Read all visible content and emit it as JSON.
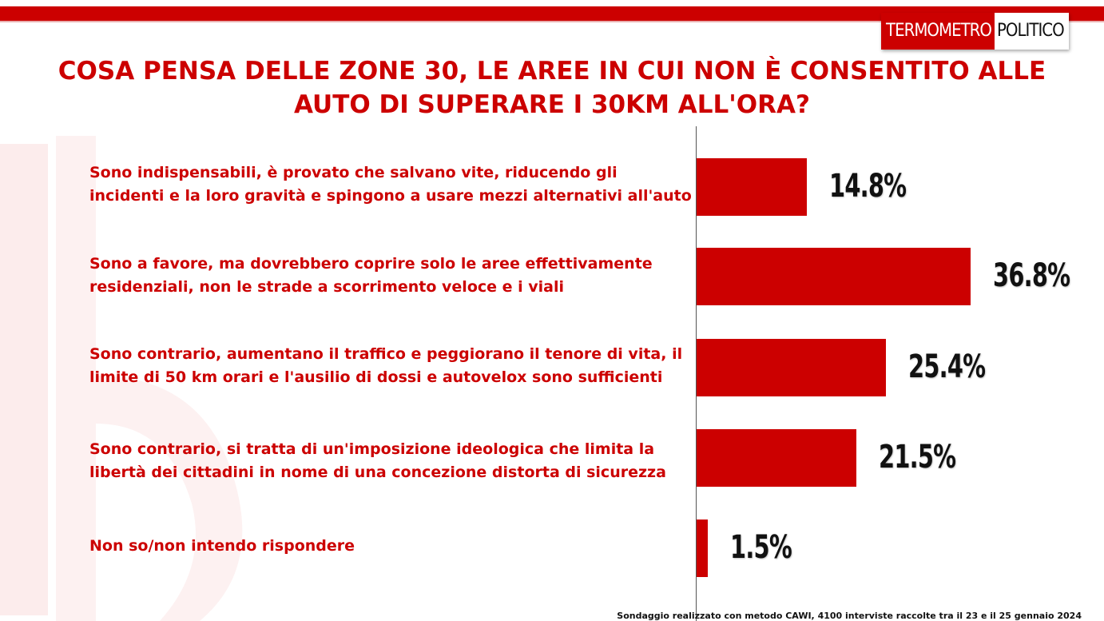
{
  "brand": {
    "part_a": "TERMOMETRO",
    "part_b": "POLITICO",
    "accent": "#cc0000"
  },
  "chart_data": {
    "type": "bar",
    "orientation": "horizontal",
    "title": "COSA PENSA DELLE ZONE 30, LE AREE IN CUI NON È CONSENTITO ALLE AUTO DI SUPERARE I 30KM ALL'ORA?",
    "categories": [
      "Sono indispensabili, è provato che salvano vite, riducendo gli incidenti e la loro gravità  e spingono a usare mezzi alternativi all'auto",
      "Sono a favore, ma dovrebbero coprire solo le aree effettivamente residenziali, non le strade a scorrimento veloce e i viali",
      "Sono contrario, aumentano il traffico e peggiorano il tenore di vita, il limite di 50 km orari e l'ausilio di dossi e autovelox sono sufficienti",
      "Sono contrario, si tratta di un'imposizione ideologica che limita la libertà  dei cittadini in nome di una concezione distorta di sicurezza",
      "Non so/non intendo rispondere"
    ],
    "values": [
      14.8,
      36.8,
      25.4,
      21.5,
      1.5
    ],
    "labels": [
      "14.8%",
      "36.8%",
      "25.4%",
      "21.5%",
      "1.5%"
    ],
    "unit": "%",
    "bar_color": "#cc0000",
    "grid": false,
    "legend": "none"
  },
  "footnote": "Sondaggio realizzato con metodo CAWI, 4100 interviste raccolte tra il 23 e il 25 gennaio 2024"
}
